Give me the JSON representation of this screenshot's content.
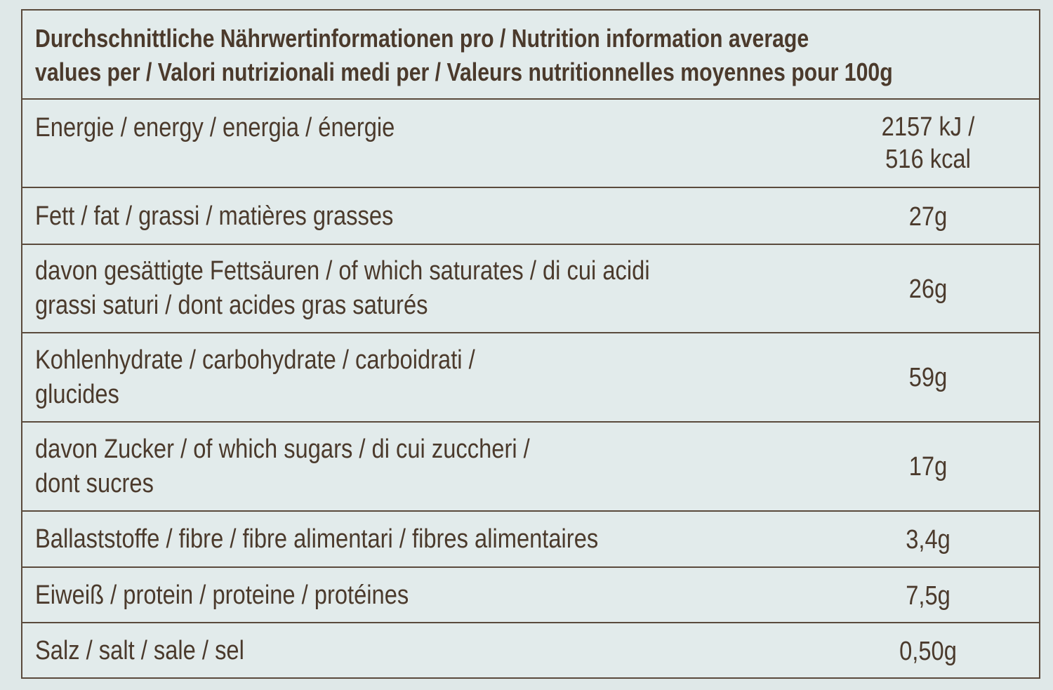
{
  "header": {
    "line1": "Durchschnittliche Nährwertinformationen pro / Nutrition information average",
    "line2": "values per / Valori nutrizionali medi per / Valeurs nutritionnelles moyennes pour 100g"
  },
  "rows": [
    {
      "label": [
        "Energie / energy / energia / énergie"
      ],
      "value": [
        "2157 kJ /",
        "516 kcal"
      ]
    },
    {
      "label": [
        "Fett / fat / grassi / matières grasses"
      ],
      "value": [
        "27g"
      ]
    },
    {
      "label": [
        "davon gesättigte Fettsäuren / of which saturates / di cui acidi",
        "grassi saturi / dont acides gras saturés"
      ],
      "value": [
        "26g"
      ]
    },
    {
      "label": [
        "Kohlenhydrate / carbohydrate / carboidrati /",
        "glucides"
      ],
      "value": [
        "59g"
      ]
    },
    {
      "label": [
        "davon Zucker / of which sugars / di cui zuccheri /",
        "dont sucres"
      ],
      "value": [
        "17g"
      ]
    },
    {
      "label": [
        "Ballaststoffe / fibre / fibre alimentari / fibres alimentaires"
      ],
      "value": [
        "3,4g"
      ]
    },
    {
      "label": [
        "Eiweiß / protein / proteine / protéines"
      ],
      "value": [
        "7,5g"
      ]
    },
    {
      "label": [
        "Salz / salt / sale / sel"
      ],
      "value": [
        "0,50g"
      ]
    }
  ]
}
